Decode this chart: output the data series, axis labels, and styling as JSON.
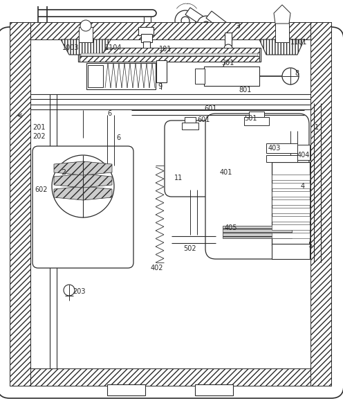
{
  "bg_color": "#ffffff",
  "lc": "#2a2a2a",
  "lw": 0.7,
  "fig_w": 4.96,
  "fig_h": 5.79
}
